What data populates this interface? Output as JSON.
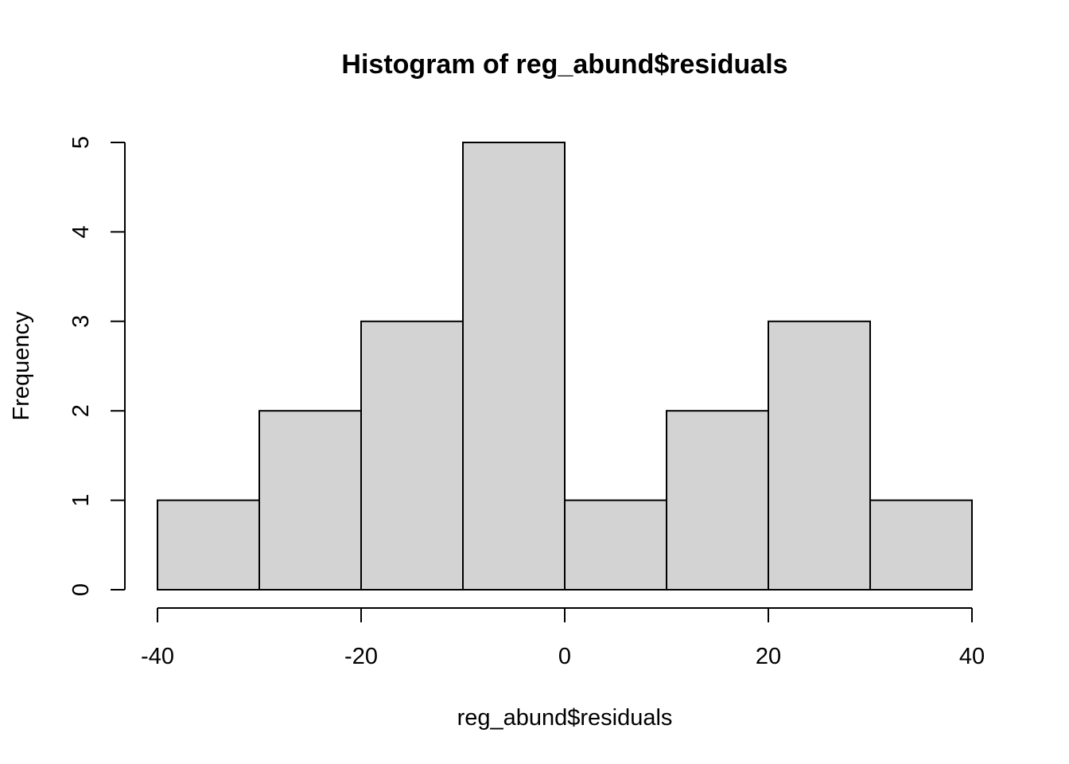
{
  "chart_data": {
    "type": "bar",
    "subtype": "histogram",
    "title": "Histogram of reg_abund$residuals",
    "xlabel": "reg_abund$residuals",
    "ylabel": "Frequency",
    "bins": [
      {
        "from": -40,
        "to": -30,
        "count": 1
      },
      {
        "from": -30,
        "to": -20,
        "count": 2
      },
      {
        "from": -20,
        "to": -10,
        "count": 3
      },
      {
        "from": -10,
        "to": 0,
        "count": 5
      },
      {
        "from": 0,
        "to": 10,
        "count": 1
      },
      {
        "from": 10,
        "to": 20,
        "count": 2
      },
      {
        "from": 20,
        "to": 30,
        "count": 3
      },
      {
        "from": 30,
        "to": 40,
        "count": 1
      }
    ],
    "x_ticks": [
      {
        "value": -40,
        "label": "-40"
      },
      {
        "value": -20,
        "label": "-20"
      },
      {
        "value": 0,
        "label": "0"
      },
      {
        "value": 20,
        "label": "20"
      },
      {
        "value": 40,
        "label": "40"
      }
    ],
    "y_ticks": [
      {
        "value": 0,
        "label": "0"
      },
      {
        "value": 1,
        "label": "1"
      },
      {
        "value": 2,
        "label": "2"
      },
      {
        "value": 3,
        "label": "3"
      },
      {
        "value": 4,
        "label": "4"
      },
      {
        "value": 5,
        "label": "5"
      }
    ],
    "xlim": [
      -40,
      40
    ],
    "ylim": [
      0,
      5
    ],
    "grid": false,
    "legend": "none",
    "bar_color": "#d3d3d3",
    "border_color": "#000000"
  }
}
